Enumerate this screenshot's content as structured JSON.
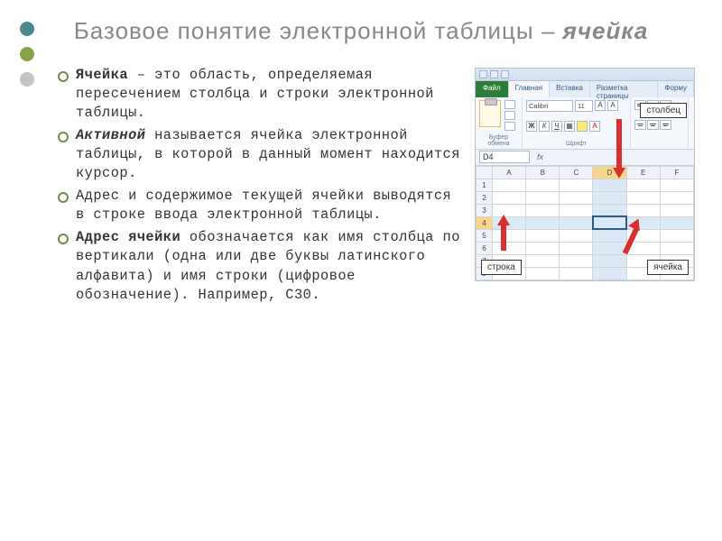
{
  "title_main": "Базовое понятие электронной таблицы – ",
  "title_em": "ячейка",
  "dots": [
    "#4a8a8e",
    "#88a44a",
    "#c4c4c4"
  ],
  "bullets": [
    {
      "lead_bold": "Ячейка",
      "rest": " – это область, определяемая пересечением столбца и строки электронной таблицы."
    },
    {
      "lead_italic_bold": "Активной",
      "rest": " называется ячейка электронной таблицы, в которой в данный момент находится курсор."
    },
    {
      "plain": "Адрес и содержимое текущей ячейки выводятся в строке ввода электронной таблицы."
    },
    {
      "lead_bold": "Адрес ячейки",
      "rest": " обозначается как имя столбца по вертикали (одна или две буквы латинского алфавита) и имя строки (цифровое обозначение). Например, С30."
    }
  ],
  "ribbon": {
    "file": "Файл",
    "tabs": [
      "Главная",
      "Вставка",
      "Разметка страницы",
      "Форму"
    ],
    "active_tab_index": 0,
    "group_clipboard": "Буфер обмена",
    "group_font": "Шрифт",
    "font_name": "Calibri",
    "font_size": "11"
  },
  "name_box": "D4",
  "columns": [
    "A",
    "B",
    "C",
    "D",
    "E",
    "F"
  ],
  "rows": [
    "1",
    "2",
    "3",
    "4",
    "5",
    "6",
    "7",
    "8"
  ],
  "highlight_col_index": 3,
  "highlight_row_index": 3,
  "callouts": {
    "column": "столбец",
    "row": "строка",
    "cell": "ячейка"
  },
  "colors": {
    "highlight_blue": "#dbe9f7",
    "header_highlight": "#f8d58a",
    "arrow_red": "#d83030",
    "active_border": "#2a5a8a"
  }
}
